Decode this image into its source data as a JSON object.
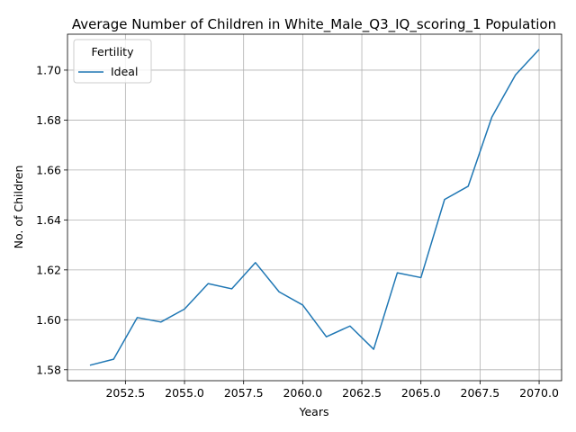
{
  "chart_data": {
    "type": "line",
    "title": "Average Number of Children in White_Male_Q3_IQ_scoring_1 Population",
    "xlabel": "Years",
    "ylabel": "No. of Children",
    "xlim": [
      2050.05,
      2070.95
    ],
    "ylim": [
      1.5756,
      1.7144
    ],
    "xticks": [
      2052.5,
      2055.0,
      2057.5,
      2060.0,
      2062.5,
      2065.0,
      2067.5,
      2070.0
    ],
    "xtick_labels": [
      "2052.5",
      "2055.0",
      "2057.5",
      "2060.0",
      "2062.5",
      "2065.0",
      "2067.5",
      "2070.0"
    ],
    "yticks": [
      1.58,
      1.6,
      1.62,
      1.64,
      1.66,
      1.68,
      1.7
    ],
    "ytick_labels": [
      "1.58",
      "1.60",
      "1.62",
      "1.64",
      "1.66",
      "1.68",
      "1.70"
    ],
    "grid": true,
    "legend": {
      "title": "Fertility",
      "position": "top-left"
    },
    "series": [
      {
        "name": "Ideal",
        "color": "#1f77b4",
        "x": [
          2051,
          2052,
          2053,
          2054,
          2055,
          2056,
          2057,
          2058,
          2059,
          2060,
          2061,
          2062,
          2063,
          2064,
          2065,
          2066,
          2067,
          2068,
          2069,
          2070
        ],
        "y": [
          1.5818,
          1.5842,
          1.6009,
          1.5991,
          1.6043,
          1.6145,
          1.6124,
          1.6229,
          1.6112,
          1.6059,
          1.5932,
          1.5975,
          1.5882,
          1.6188,
          1.6169,
          1.6482,
          1.6535,
          1.6812,
          1.6981,
          1.7083
        ]
      }
    ]
  }
}
